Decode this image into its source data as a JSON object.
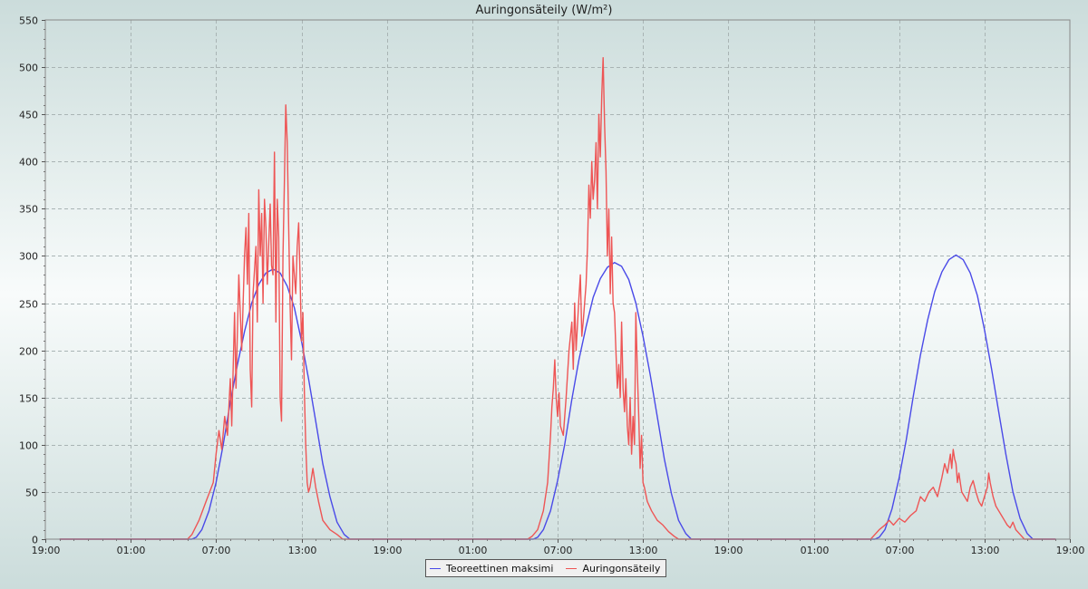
{
  "chart_data": {
    "type": "line",
    "title": "Auringonsäteily (W/m²)",
    "xlabel": "",
    "ylabel": "",
    "ylim": [
      0,
      550
    ],
    "yticks": [
      0,
      50,
      100,
      150,
      200,
      250,
      300,
      350,
      400,
      450,
      500,
      550
    ],
    "xlim_hours": [
      0,
      72
    ],
    "xticks": [
      {
        "hour": 0,
        "label": "19:00"
      },
      {
        "hour": 6,
        "label": "01:00"
      },
      {
        "hour": 12,
        "label": "07:00"
      },
      {
        "hour": 18,
        "label": "13:00"
      },
      {
        "hour": 24,
        "label": "19:00"
      },
      {
        "hour": 30,
        "label": "01:00"
      },
      {
        "hour": 36,
        "label": "07:00"
      },
      {
        "hour": 42,
        "label": "13:00"
      },
      {
        "hour": 48,
        "label": "19:00"
      },
      {
        "hour": 54,
        "label": "01:00"
      },
      {
        "hour": 60,
        "label": "07:00"
      },
      {
        "hour": 66,
        "label": "13:00"
      },
      {
        "hour": 72,
        "label": "19:00"
      }
    ],
    "grid": true,
    "legend_position": "bottom-center",
    "series": [
      {
        "name": "Teoreettinen maksimi",
        "color": "#4a4ae8",
        "points": [
          [
            1,
            0
          ],
          [
            10.3,
            0
          ],
          [
            10.6,
            2
          ],
          [
            11,
            10
          ],
          [
            11.5,
            30
          ],
          [
            12,
            60
          ],
          [
            12.5,
            100
          ],
          [
            13,
            145
          ],
          [
            13.5,
            185
          ],
          [
            14,
            220
          ],
          [
            14.5,
            250
          ],
          [
            15,
            270
          ],
          [
            15.5,
            282
          ],
          [
            16,
            286
          ],
          [
            16.5,
            282
          ],
          [
            17,
            268
          ],
          [
            17.5,
            245
          ],
          [
            18,
            210
          ],
          [
            18.5,
            170
          ],
          [
            19,
            125
          ],
          [
            19.5,
            80
          ],
          [
            20,
            45
          ],
          [
            20.5,
            18
          ],
          [
            21,
            5
          ],
          [
            21.4,
            0
          ],
          [
            34.3,
            0
          ],
          [
            34.6,
            2
          ],
          [
            35,
            10
          ],
          [
            35.5,
            30
          ],
          [
            36,
            62
          ],
          [
            36.5,
            100
          ],
          [
            37,
            148
          ],
          [
            37.5,
            190
          ],
          [
            38,
            225
          ],
          [
            38.5,
            256
          ],
          [
            39,
            276
          ],
          [
            39.5,
            288
          ],
          [
            40,
            293
          ],
          [
            40.5,
            289
          ],
          [
            41,
            275
          ],
          [
            41.5,
            250
          ],
          [
            42,
            215
          ],
          [
            42.5,
            175
          ],
          [
            43,
            130
          ],
          [
            43.5,
            85
          ],
          [
            44,
            48
          ],
          [
            44.5,
            20
          ],
          [
            45,
            6
          ],
          [
            45.4,
            0
          ],
          [
            58.3,
            0
          ],
          [
            58.6,
            2
          ],
          [
            59,
            10
          ],
          [
            59.5,
            32
          ],
          [
            60,
            65
          ],
          [
            60.5,
            105
          ],
          [
            61,
            152
          ],
          [
            61.5,
            195
          ],
          [
            62,
            232
          ],
          [
            62.5,
            262
          ],
          [
            63,
            283
          ],
          [
            63.5,
            296
          ],
          [
            64,
            301
          ],
          [
            64.5,
            296
          ],
          [
            65,
            282
          ],
          [
            65.5,
            258
          ],
          [
            66,
            222
          ],
          [
            66.5,
            180
          ],
          [
            67,
            135
          ],
          [
            67.5,
            90
          ],
          [
            68,
            50
          ],
          [
            68.5,
            22
          ],
          [
            69,
            6
          ],
          [
            69.4,
            0
          ],
          [
            71,
            0
          ]
        ]
      },
      {
        "name": "Auringonsäteily",
        "color": "#ee5555",
        "points": [
          [
            1,
            0
          ],
          [
            10,
            0
          ],
          [
            10.3,
            5
          ],
          [
            10.8,
            20
          ],
          [
            11.3,
            40
          ],
          [
            11.8,
            60
          ],
          [
            12,
            90
          ],
          [
            12.2,
            115
          ],
          [
            12.4,
            95
          ],
          [
            12.6,
            130
          ],
          [
            12.8,
            110
          ],
          [
            13,
            170
          ],
          [
            13.1,
            120
          ],
          [
            13.3,
            240
          ],
          [
            13.4,
            160
          ],
          [
            13.6,
            280
          ],
          [
            13.8,
            200
          ],
          [
            14,
            300
          ],
          [
            14.1,
            330
          ],
          [
            14.2,
            270
          ],
          [
            14.3,
            345
          ],
          [
            14.4,
            180
          ],
          [
            14.5,
            140
          ],
          [
            14.6,
            260
          ],
          [
            14.8,
            310
          ],
          [
            14.9,
            230
          ],
          [
            15,
            370
          ],
          [
            15.1,
            300
          ],
          [
            15.2,
            345
          ],
          [
            15.3,
            250
          ],
          [
            15.4,
            360
          ],
          [
            15.5,
            330
          ],
          [
            15.6,
            270
          ],
          [
            15.8,
            355
          ],
          [
            15.9,
            290
          ],
          [
            16,
            280
          ],
          [
            16.1,
            410
          ],
          [
            16.2,
            230
          ],
          [
            16.3,
            360
          ],
          [
            16.4,
            320
          ],
          [
            16.5,
            150
          ],
          [
            16.6,
            125
          ],
          [
            16.7,
            300
          ],
          [
            16.8,
            380
          ],
          [
            16.9,
            460
          ],
          [
            17,
            420
          ],
          [
            17.1,
            330
          ],
          [
            17.2,
            250
          ],
          [
            17.3,
            190
          ],
          [
            17.4,
            300
          ],
          [
            17.6,
            260
          ],
          [
            17.7,
            310
          ],
          [
            17.8,
            335
          ],
          [
            17.9,
            280
          ],
          [
            18,
            210
          ],
          [
            18.1,
            240
          ],
          [
            18.2,
            160
          ],
          [
            18.3,
            100
          ],
          [
            18.4,
            60
          ],
          [
            18.5,
            50
          ],
          [
            18.6,
            55
          ],
          [
            18.8,
            75
          ],
          [
            19,
            55
          ],
          [
            19.2,
            40
          ],
          [
            19.5,
            20
          ],
          [
            20,
            10
          ],
          [
            20.5,
            5
          ],
          [
            20.9,
            0
          ],
          [
            33.9,
            0
          ],
          [
            34.2,
            3
          ],
          [
            34.6,
            10
          ],
          [
            35,
            30
          ],
          [
            35.3,
            60
          ],
          [
            35.5,
            110
          ],
          [
            35.6,
            140
          ],
          [
            35.7,
            160
          ],
          [
            35.8,
            190
          ],
          [
            35.9,
            150
          ],
          [
            36,
            130
          ],
          [
            36.1,
            155
          ],
          [
            36.2,
            120
          ],
          [
            36.4,
            110
          ],
          [
            36.6,
            150
          ],
          [
            36.8,
            200
          ],
          [
            37,
            230
          ],
          [
            37.1,
            180
          ],
          [
            37.2,
            250
          ],
          [
            37.3,
            200
          ],
          [
            37.5,
            255
          ],
          [
            37.6,
            280
          ],
          [
            37.7,
            215
          ],
          [
            37.8,
            230
          ],
          [
            38,
            270
          ],
          [
            38.1,
            310
          ],
          [
            38.2,
            375
          ],
          [
            38.3,
            340
          ],
          [
            38.4,
            400
          ],
          [
            38.5,
            360
          ],
          [
            38.6,
            380
          ],
          [
            38.7,
            420
          ],
          [
            38.8,
            350
          ],
          [
            38.9,
            450
          ],
          [
            39,
            405
          ],
          [
            39.1,
            470
          ],
          [
            39.2,
            510
          ],
          [
            39.3,
            440
          ],
          [
            39.4,
            390
          ],
          [
            39.5,
            300
          ],
          [
            39.6,
            350
          ],
          [
            39.7,
            260
          ],
          [
            39.8,
            320
          ],
          [
            39.9,
            250
          ],
          [
            40,
            240
          ],
          [
            40.1,
            200
          ],
          [
            40.2,
            160
          ],
          [
            40.3,
            185
          ],
          [
            40.4,
            150
          ],
          [
            40.5,
            230
          ],
          [
            40.6,
            160
          ],
          [
            40.7,
            135
          ],
          [
            40.8,
            170
          ],
          [
            40.9,
            120
          ],
          [
            41,
            100
          ],
          [
            41.1,
            150
          ],
          [
            41.2,
            90
          ],
          [
            41.3,
            130
          ],
          [
            41.4,
            100
          ],
          [
            41.5,
            240
          ],
          [
            41.6,
            180
          ],
          [
            41.7,
            130
          ],
          [
            41.8,
            75
          ],
          [
            41.9,
            110
          ],
          [
            42,
            60
          ],
          [
            42.1,
            55
          ],
          [
            42.3,
            40
          ],
          [
            42.6,
            30
          ],
          [
            43,
            20
          ],
          [
            43.4,
            15
          ],
          [
            43.8,
            8
          ],
          [
            44.2,
            3
          ],
          [
            44.5,
            0
          ],
          [
            58,
            0
          ],
          [
            58.3,
            5
          ],
          [
            58.6,
            10
          ],
          [
            59,
            15
          ],
          [
            59.3,
            20
          ],
          [
            59.6,
            15
          ],
          [
            60,
            22
          ],
          [
            60.4,
            18
          ],
          [
            60.8,
            25
          ],
          [
            61.2,
            30
          ],
          [
            61.5,
            45
          ],
          [
            61.8,
            40
          ],
          [
            62.1,
            50
          ],
          [
            62.4,
            55
          ],
          [
            62.7,
            45
          ],
          [
            63,
            65
          ],
          [
            63.2,
            80
          ],
          [
            63.4,
            70
          ],
          [
            63.6,
            90
          ],
          [
            63.7,
            75
          ],
          [
            63.8,
            95
          ],
          [
            63.9,
            85
          ],
          [
            64,
            80
          ],
          [
            64.1,
            60
          ],
          [
            64.2,
            70
          ],
          [
            64.4,
            50
          ],
          [
            64.6,
            45
          ],
          [
            64.8,
            40
          ],
          [
            65,
            55
          ],
          [
            65.2,
            62
          ],
          [
            65.4,
            50
          ],
          [
            65.6,
            40
          ],
          [
            65.8,
            35
          ],
          [
            66,
            45
          ],
          [
            66.2,
            55
          ],
          [
            66.3,
            70
          ],
          [
            66.4,
            60
          ],
          [
            66.6,
            45
          ],
          [
            66.8,
            35
          ],
          [
            67,
            30
          ],
          [
            67.2,
            25
          ],
          [
            67.4,
            20
          ],
          [
            67.6,
            15
          ],
          [
            67.8,
            12
          ],
          [
            68,
            18
          ],
          [
            68.2,
            10
          ],
          [
            68.5,
            5
          ],
          [
            68.8,
            0
          ],
          [
            71,
            0
          ]
        ]
      }
    ]
  },
  "legend": {
    "items": [
      {
        "label": "Teoreettinen maksimi",
        "color": "#4a4ae8"
      },
      {
        "label": "Auringonsäteily",
        "color": "#ee5555"
      }
    ]
  }
}
